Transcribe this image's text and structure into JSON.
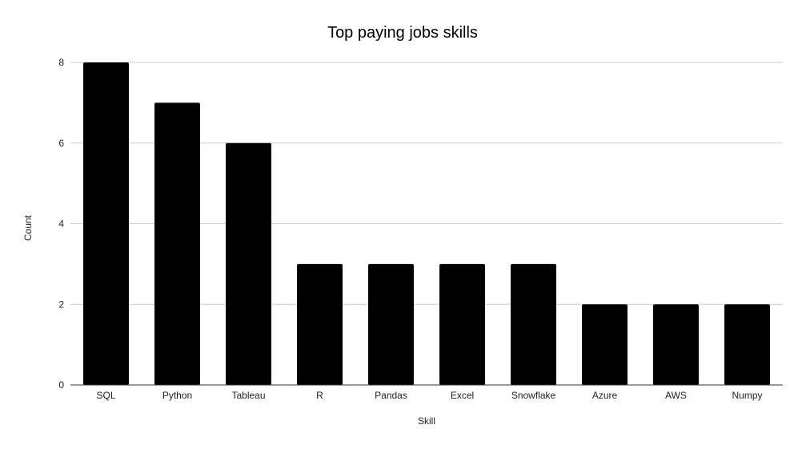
{
  "chart_data": {
    "type": "bar",
    "title": "Top paying jobs skills",
    "xlabel": "Skill",
    "ylabel": "Count",
    "categories": [
      "SQL",
      "Python",
      "Tableau",
      "R",
      "Pandas",
      "Excel",
      "Snowflake",
      "Azure",
      "AWS",
      "Numpy"
    ],
    "values": [
      8,
      7,
      6,
      3,
      3,
      3,
      3,
      2,
      2,
      2
    ],
    "ylim": [
      0,
      8
    ],
    "yticks": [
      0,
      2,
      4,
      6,
      8
    ],
    "grid": true,
    "legend": "none",
    "bar_color": "#000000"
  }
}
